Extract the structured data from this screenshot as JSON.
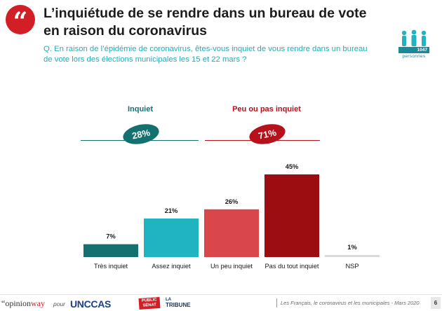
{
  "title": "L’inquiétude de se rendre dans un bureau de vote en raison du coronavirus",
  "question": "Q. En raison de l’épidémie de coronavirus, êtes-vous inquiet de vous rendre dans un bureau de vote lors des élections municipales les 15 et 22 mars ?",
  "sample": {
    "count": "1047",
    "unit": "personnes"
  },
  "colors": {
    "teal_dark": "#15716f",
    "teal_light": "#1fb4c0",
    "red_light": "#d9474b",
    "red_dark": "#9b0d10",
    "gray": "#d9d9d9",
    "brand_red": "#d21f25"
  },
  "groups": {
    "inquiet": {
      "label": "Inquiet",
      "value": "28%"
    },
    "peu": {
      "label": "Peu ou pas inquiet",
      "value": "71%"
    }
  },
  "chart_data": {
    "type": "bar",
    "title": "L’inquiétude de se rendre dans un bureau de vote en raison du coronavirus",
    "categories": [
      "Très inquiet",
      "Assez inquiet",
      "Un peu inquiet",
      "Pas du tout inquiet",
      "NSP"
    ],
    "values": [
      7,
      21,
      26,
      45,
      1
    ],
    "value_labels": [
      "7%",
      "21%",
      "26%",
      "45%",
      "1%"
    ],
    "bar_colors": [
      "#15716f",
      "#1fb4c0",
      "#d9474b",
      "#9b0d10",
      "#d9d9d9"
    ],
    "ylim": [
      0,
      45
    ],
    "xlabel": "",
    "ylabel": "",
    "grid": false,
    "legend": "none"
  },
  "footer": {
    "brand_left": "opinion",
    "brand_right": "way",
    "pour": "pour",
    "partner1": "UNCCAS",
    "partner2_line1": "PUBLIC",
    "partner2_line2": "SÉNAT",
    "partner3_line1": "LA",
    "partner3_line2": "TRIBUNE",
    "source": "Les Français, le coronavirus et les municipales - Mars 2020",
    "page": "6"
  }
}
